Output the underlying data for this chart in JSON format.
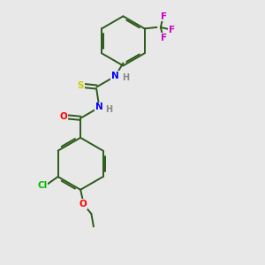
{
  "bg_color": "#e8e8e8",
  "bond_color": "#2d5a1b",
  "atom_colors": {
    "N": "#0000ff",
    "O": "#ff0000",
    "S": "#cccc00",
    "Cl": "#00bb00",
    "F": "#cc00cc",
    "H": "#888888",
    "C": "#2d5a1b"
  },
  "font_size": 7.5,
  "lw": 1.4
}
